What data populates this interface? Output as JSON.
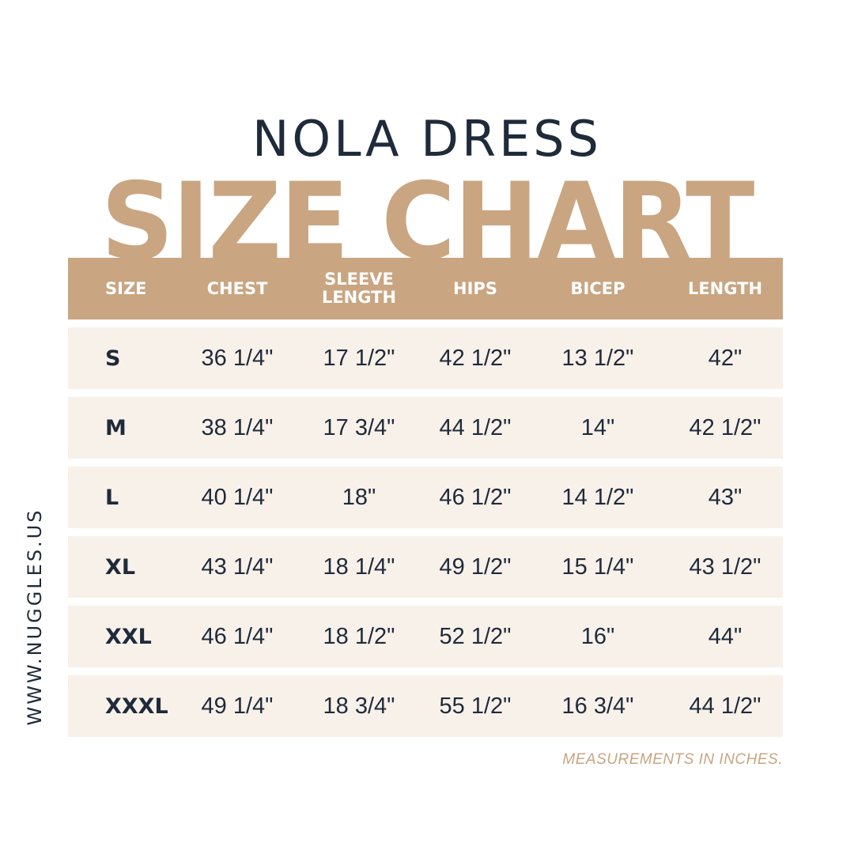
{
  "product_name": "NOLA DRESS",
  "chart_title": "SIZE CHART",
  "table": {
    "headers": {
      "size": "SIZE",
      "chest": "CHEST",
      "sleeve_line1": "SLEEVE",
      "sleeve_line2": "LENGTH",
      "hips": "HIPS",
      "bicep": "BICEP",
      "length": "LENGTH"
    },
    "rows": [
      {
        "size": "S",
        "chest": "36 1/4\"",
        "sleeve": "17 1/2\"",
        "hips": "42 1/2\"",
        "bicep": "13 1/2\"",
        "length": "42\""
      },
      {
        "size": "M",
        "chest": "38 1/4\"",
        "sleeve": "17 3/4\"",
        "hips": "44 1/2\"",
        "bicep": "14\"",
        "length": "42 1/2\""
      },
      {
        "size": "L",
        "chest": "40 1/4\"",
        "sleeve": "18\"",
        "hips": "46 1/2\"",
        "bicep": "14 1/2\"",
        "length": "43\""
      },
      {
        "size": "XL",
        "chest": "43 1/4\"",
        "sleeve": "18 1/4\"",
        "hips": "49 1/2\"",
        "bicep": "15 1/4\"",
        "length": "43 1/2\""
      },
      {
        "size": "XXL",
        "chest": "46 1/4\"",
        "sleeve": "18 1/2\"",
        "hips": "52 1/2\"",
        "bicep": "16\"",
        "length": "44\""
      },
      {
        "size": "XXXL",
        "chest": "49 1/4\"",
        "sleeve": "18 3/4\"",
        "hips": "55 1/2\"",
        "bicep": "16 3/4\"",
        "length": "44 1/2\""
      }
    ]
  },
  "website": "WWW.NUGGLES.US",
  "footnote": "MEASUREMENTS IN INCHES.",
  "colors": {
    "accent": "#c9a581",
    "text_dark": "#1f2a3a",
    "row_background": "#f8f1ea"
  }
}
